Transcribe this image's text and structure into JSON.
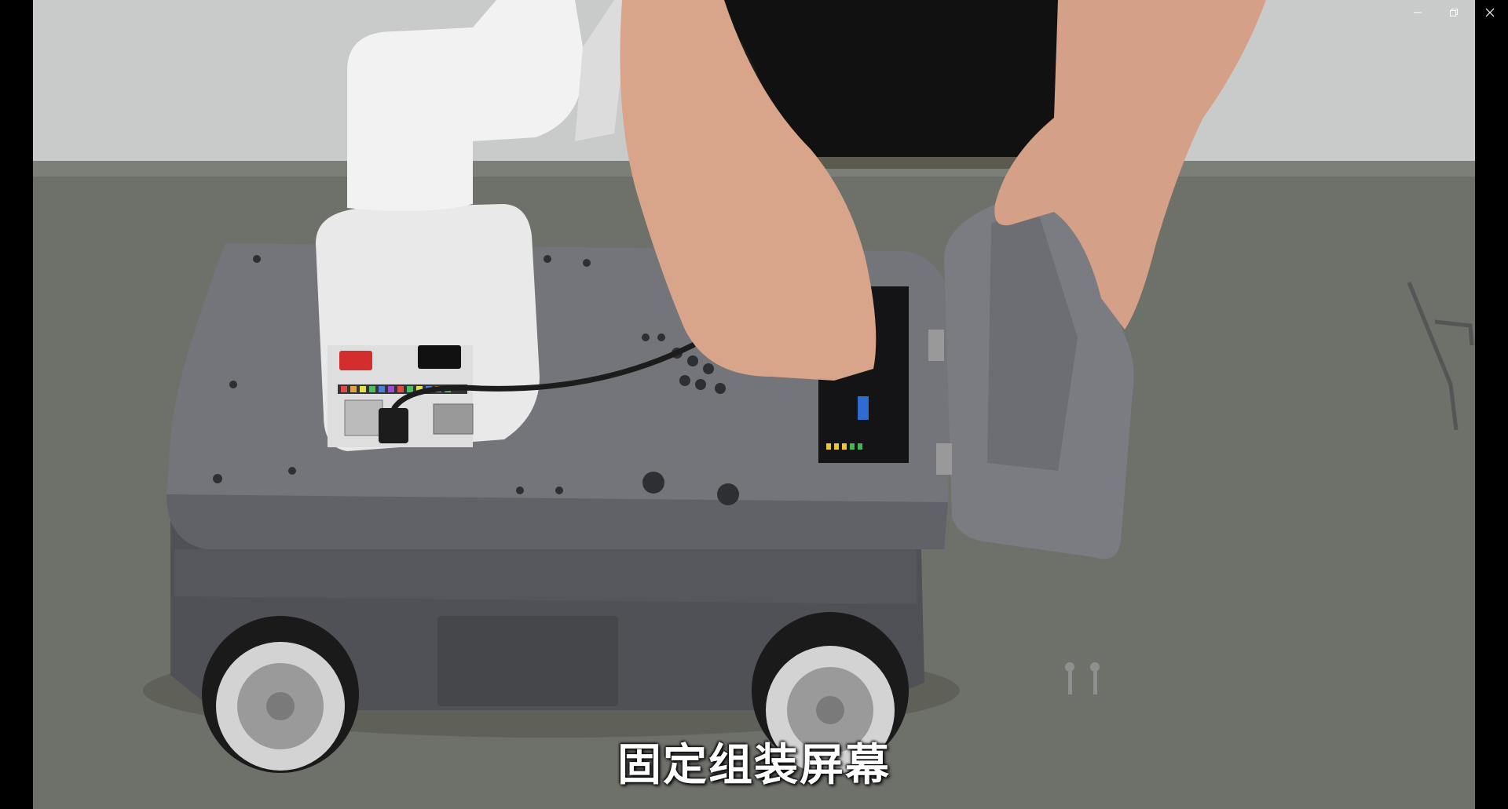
{
  "subtitle": "固定组装屏幕",
  "window_controls": {
    "minimize": "minimize-icon",
    "restore": "restore-icon",
    "close": "close-icon"
  },
  "colors": {
    "background": "#000000",
    "table": "#6f716a",
    "wall": "#c9cbcb",
    "robot_body": "#5e6065",
    "arm": "#ececec",
    "subtitle": "#ffffff"
  }
}
